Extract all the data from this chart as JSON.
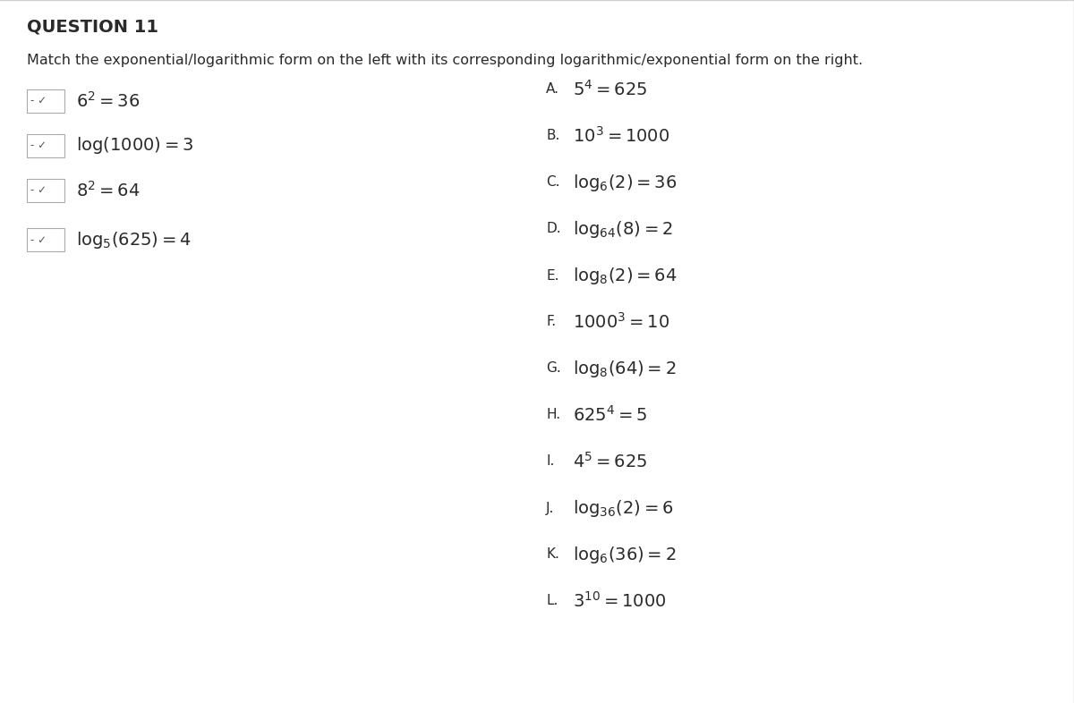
{
  "title": "QUESTION 11",
  "subtitle": "Match the exponential/logarithmic form on the left with its corresponding logarithmic/exponential form on the right.",
  "background_color": "#ffffff",
  "border_color": "#d0d0d0",
  "left_items": [
    {
      "parts": [
        {
          "text": "6",
          "style": "normal"
        },
        {
          "text": "2",
          "style": "super"
        },
        {
          "text": " = 36",
          "style": "normal"
        }
      ]
    },
    {
      "parts": [
        {
          "text": "log(1000) = 3",
          "style": "normal"
        }
      ]
    },
    {
      "parts": [
        {
          "text": "8",
          "style": "normal"
        },
        {
          "text": "2",
          "style": "super"
        },
        {
          "text": " = 64",
          "style": "normal"
        }
      ]
    },
    {
      "parts": [
        {
          "text": "log",
          "style": "normal"
        },
        {
          "text": "5",
          "style": "sub"
        },
        {
          "text": "(625) = 4",
          "style": "normal"
        }
      ]
    }
  ],
  "right_items": [
    {
      "label": "A.",
      "parts": [
        {
          "text": "5",
          "style": "normal"
        },
        {
          "text": "4",
          "style": "super"
        },
        {
          "text": " = 625",
          "style": "normal"
        }
      ]
    },
    {
      "label": "B.",
      "parts": [
        {
          "text": "10",
          "style": "normal"
        },
        {
          "text": "3",
          "style": "super"
        },
        {
          "text": " = 1000",
          "style": "normal"
        }
      ]
    },
    {
      "label": "C.",
      "parts": [
        {
          "text": "log",
          "style": "normal"
        },
        {
          "text": "6",
          "style": "sub"
        },
        {
          "text": "(2) = 36",
          "style": "normal"
        }
      ]
    },
    {
      "label": "D.",
      "parts": [
        {
          "text": "log",
          "style": "normal"
        },
        {
          "text": "64",
          "style": "sub"
        },
        {
          "text": "(8) = 2",
          "style": "normal"
        }
      ]
    },
    {
      "label": "E.",
      "parts": [
        {
          "text": "log",
          "style": "normal"
        },
        {
          "text": "8",
          "style": "sub"
        },
        {
          "text": "(2) = 64",
          "style": "normal"
        }
      ]
    },
    {
      "label": "F.",
      "parts": [
        {
          "text": "1000",
          "style": "normal"
        },
        {
          "text": "3",
          "style": "super"
        },
        {
          "text": " = 10",
          "style": "normal"
        }
      ]
    },
    {
      "label": "G.",
      "parts": [
        {
          "text": "log",
          "style": "normal"
        },
        {
          "text": "8",
          "style": "sub"
        },
        {
          "text": "(64) = 2",
          "style": "normal"
        }
      ]
    },
    {
      "label": "H.",
      "parts": [
        {
          "text": "625",
          "style": "normal"
        },
        {
          "text": "4",
          "style": "super"
        },
        {
          "text": " = 5",
          "style": "normal"
        }
      ]
    },
    {
      "label": "I.",
      "parts": [
        {
          "text": "4",
          "style": "normal"
        },
        {
          "text": "5",
          "style": "super"
        },
        {
          "text": " = 625",
          "style": "normal"
        }
      ]
    },
    {
      "label": "J.",
      "parts": [
        {
          "text": "log",
          "style": "normal"
        },
        {
          "text": "36",
          "style": "sub"
        },
        {
          "text": "(2) = 6",
          "style": "normal"
        }
      ]
    },
    {
      "label": "K.",
      "parts": [
        {
          "text": "log",
          "style": "normal"
        },
        {
          "text": "6",
          "style": "sub"
        },
        {
          "text": "(36) = 2",
          "style": "normal"
        }
      ]
    },
    {
      "label": "L.",
      "parts": [
        {
          "text": "3",
          "style": "normal"
        },
        {
          "text": "10",
          "style": "super"
        },
        {
          "text": " = 1000",
          "style": "normal"
        }
      ]
    }
  ],
  "font_size_title": 14,
  "font_size_subtitle": 11.5,
  "font_size_items": 14,
  "font_size_label": 11,
  "text_color": "#2a2a2a",
  "label_color": "#2a2a2a",
  "box_color": "#aaaaaa",
  "dash_check_color": "#555555"
}
